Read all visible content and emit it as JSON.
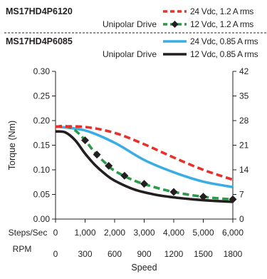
{
  "chart_data": {
    "type": "line",
    "legend_groups": [
      {
        "model": "MS17HD4P6120",
        "drive": "Unipolar Drive",
        "series_names": [
          "24 Vdc, 1.2 A rms",
          "12 Vdc, 1.2 A rms"
        ]
      },
      {
        "model": "MS17HD4P6085",
        "drive": "Unipolar Drive",
        "series_names": [
          "24 Vdc, 0.85 A rms",
          "12 Vdc, 0.85 A rms"
        ]
      }
    ],
    "series": [
      {
        "name": "24 Vdc, 1.2 A rms",
        "color": "#e8302a",
        "style": "dashed",
        "x": [
          0,
          300,
          600,
          900,
          1200,
          1500,
          1800
        ],
        "y": [
          0.188,
          0.187,
          0.175,
          0.152,
          0.125,
          0.1,
          0.08
        ]
      },
      {
        "name": "12 Vdc, 1.2 A rms",
        "color": "#2b9a48",
        "style": "dashed-diamond",
        "x": [
          0,
          100,
          200,
          300,
          400,
          500,
          600,
          800,
          1000,
          1200,
          1400,
          1600,
          1800
        ],
        "y": [
          0.187,
          0.189,
          0.18,
          0.16,
          0.135,
          0.115,
          0.098,
          0.078,
          0.065,
          0.055,
          0.048,
          0.043,
          0.04
        ]
      },
      {
        "name": "24 Vdc, 0.85 A rms",
        "color": "#3aaee4",
        "style": "solid",
        "x": [
          0,
          300,
          600,
          900,
          1200,
          1500,
          1800
        ],
        "y": [
          0.188,
          0.18,
          0.155,
          0.12,
          0.095,
          0.076,
          0.065
        ]
      },
      {
        "name": "12 Vdc, 0.85 A rms",
        "color": "#231f20",
        "style": "solid",
        "x": [
          0,
          100,
          200,
          300,
          400,
          500,
          600,
          800,
          1000,
          1200,
          1400,
          1600,
          1800
        ],
        "y": [
          0.178,
          0.176,
          0.16,
          0.133,
          0.11,
          0.092,
          0.078,
          0.06,
          0.05,
          0.044,
          0.04,
          0.037,
          0.035
        ]
      }
    ],
    "diamond_markers_x": [
      300,
      420,
      540,
      700,
      900,
      1200,
      1500,
      1800
    ],
    "ylabel": "Torque (Nm)",
    "xlabel": "Speed",
    "ylim": [
      0,
      0.3
    ],
    "y_ticks": [
      "0.00",
      "0.05",
      "0.10",
      "0.15",
      "0.20",
      "0.25",
      "0.30"
    ],
    "y2_ticks": [
      "0",
      "7",
      "14",
      "21",
      "28",
      "35",
      "42"
    ],
    "y2_side_label": "",
    "x_rows": [
      {
        "label": "Steps/Sec",
        "ticks": [
          "0",
          "1,000",
          "2,000",
          "3,000",
          "4,000",
          "5,000",
          "6,000"
        ]
      },
      {
        "label": "RPM",
        "ticks": [
          "0",
          "300",
          "600",
          "900",
          "1200",
          "1500",
          "1800"
        ]
      }
    ],
    "xlim": [
      0,
      1800
    ],
    "grid": false
  }
}
